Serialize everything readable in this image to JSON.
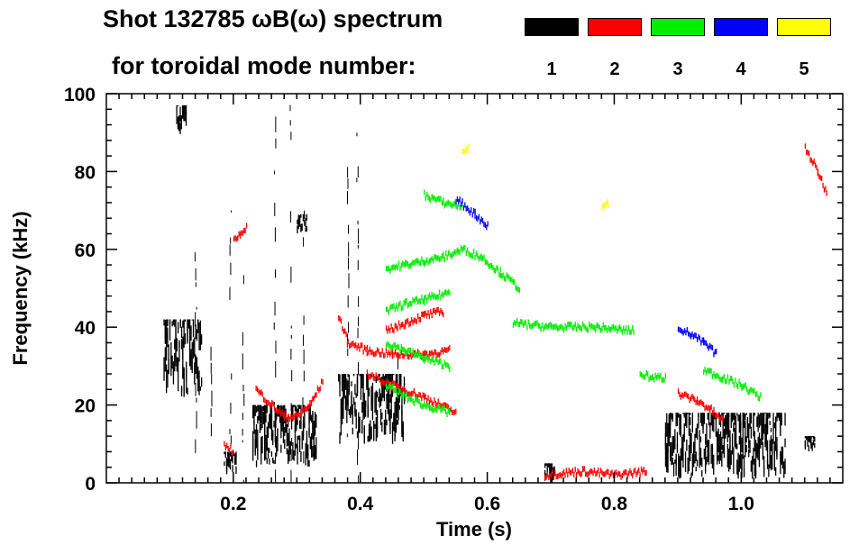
{
  "chart_data": {
    "type": "scatter",
    "title_line1": "Shot 132785 ωB(ω) spectrum",
    "title_line2": "for toroidal mode number:",
    "xlabel": "Time (s)",
    "ylabel": "Frequency (kHz)",
    "xlim": [
      0.0,
      1.16
    ],
    "ylim": [
      0,
      100
    ],
    "xticks": [
      0.2,
      0.4,
      0.6,
      0.8,
      1.0
    ],
    "xtick_labels": [
      "0.2",
      "0.4",
      "0.6",
      "0.8",
      "1.0"
    ],
    "yticks": [
      0,
      20,
      40,
      60,
      80,
      100
    ],
    "ytick_labels": [
      "0",
      "20",
      "40",
      "60",
      "80",
      "100"
    ],
    "legend": [
      {
        "label": "1",
        "color": "#000000"
      },
      {
        "label": "2",
        "color": "#ff0000"
      },
      {
        "label": "3",
        "color": "#00ee00"
      },
      {
        "label": "4",
        "color": "#0000ff"
      },
      {
        "label": "5",
        "color": "#ffff00"
      }
    ],
    "legend_placement": "top-right",
    "series": [
      {
        "label": "1",
        "color": "#000000",
        "blobs": [
          {
            "x": [
              0.09,
              0.15
            ],
            "y": [
              22,
              42
            ]
          },
          {
            "x": [
              0.11,
              0.125
            ],
            "y": [
              89,
              97
            ]
          },
          {
            "x": [
              0.23,
              0.33
            ],
            "y": [
              4,
              20
            ]
          },
          {
            "x": [
              0.365,
              0.47
            ],
            "y": [
              10,
              28
            ]
          },
          {
            "x": [
              0.185,
              0.205
            ],
            "y": [
              2,
              8
            ]
          },
          {
            "x": [
              0.69,
              0.705
            ],
            "y": [
              0,
              5
            ]
          },
          {
            "x": [
              0.88,
              1.07
            ],
            "y": [
              1,
              18
            ]
          },
          {
            "x": [
              0.3,
              0.315
            ],
            "y": [
              64,
              69
            ]
          },
          {
            "x": [
              1.1,
              1.115
            ],
            "y": [
              8,
              12
            ]
          }
        ],
        "streaks": [
          {
            "x": 0.14,
            "y": [
              0,
              60
            ]
          },
          {
            "x": 0.165,
            "y": [
              0,
              35
            ]
          },
          {
            "x": 0.195,
            "y": [
              10,
              70
            ]
          },
          {
            "x": 0.215,
            "y": [
              0,
              55
            ]
          },
          {
            "x": 0.265,
            "y": [
              0,
              100
            ]
          },
          {
            "x": 0.29,
            "y": [
              0,
              100
            ]
          },
          {
            "x": 0.31,
            "y": [
              5,
              70
            ]
          },
          {
            "x": 0.38,
            "y": [
              0,
              90
            ]
          },
          {
            "x": 0.395,
            "y": [
              0,
              90
            ]
          },
          {
            "x": 0.46,
            "y": [
              15,
              40
            ]
          }
        ]
      },
      {
        "label": "2",
        "color": "#ff0000",
        "traces": [
          {
            "x": [
              0.235,
              0.26,
              0.28,
              0.3,
              0.32,
              0.34
            ],
            "y": [
              24,
              20,
              17,
              17,
              20,
              26
            ]
          },
          {
            "x": [
              0.365,
              0.38,
              0.41,
              0.45,
              0.5,
              0.54
            ],
            "y": [
              43,
              36,
              34,
              33,
              33,
              34
            ]
          },
          {
            "x": [
              0.44,
              0.47,
              0.5,
              0.53
            ],
            "y": [
              39,
              41,
              43,
              44
            ]
          },
          {
            "x": [
              0.41,
              0.45,
              0.5,
              0.55
            ],
            "y": [
              28,
              25,
              22,
              18
            ]
          },
          {
            "x": [
              0.2,
              0.21,
              0.22
            ],
            "y": [
              62,
              64,
              66
            ]
          },
          {
            "x": [
              0.9,
              0.93,
              0.95,
              0.97
            ],
            "y": [
              23,
              21,
              19,
              16
            ]
          },
          {
            "x": [
              1.1,
              1.12,
              1.135
            ],
            "y": [
              86,
              80,
              74
            ]
          },
          {
            "x": [
              0.69,
              0.75,
              0.8,
              0.85
            ],
            "y": [
              2,
              3,
              2,
              3
            ]
          },
          {
            "x": [
              0.185,
              0.2
            ],
            "y": [
              10,
              8
            ]
          }
        ]
      },
      {
        "label": "3",
        "color": "#00ee00",
        "traces": [
          {
            "x": [
              0.44,
              0.47,
              0.5,
              0.53,
              0.56,
              0.59,
              0.62,
              0.65
            ],
            "y": [
              55,
              56,
              57,
              58,
              60,
              58,
              54,
              50
            ]
          },
          {
            "x": [
              0.44,
              0.47,
              0.5,
              0.54
            ],
            "y": [
              44,
              46,
              47,
              49
            ]
          },
          {
            "x": [
              0.44,
              0.47,
              0.5,
              0.54
            ],
            "y": [
              36,
              34,
              32,
              30
            ]
          },
          {
            "x": [
              0.44,
              0.47,
              0.5,
              0.54
            ],
            "y": [
              25,
              22,
              20,
              18
            ]
          },
          {
            "x": [
              0.64,
              0.7,
              0.77,
              0.83
            ],
            "y": [
              41,
              40,
              40,
              39
            ]
          },
          {
            "x": [
              0.94,
              0.97,
              1.0,
              1.03
            ],
            "y": [
              29,
              27,
              25,
              22
            ]
          },
          {
            "x": [
              0.5,
              0.53,
              0.56
            ],
            "y": [
              74,
              72,
              71
            ]
          },
          {
            "x": [
              0.84,
              0.86,
              0.88
            ],
            "y": [
              28,
              27,
              27
            ]
          }
        ]
      },
      {
        "label": "4",
        "color": "#0000ff",
        "traces": [
          {
            "x": [
              0.9,
              0.92,
              0.94,
              0.96
            ],
            "y": [
              40,
              38,
              36,
              33
            ]
          },
          {
            "x": [
              0.55,
              0.58,
              0.6
            ],
            "y": [
              73,
              69,
              66
            ]
          }
        ]
      },
      {
        "label": "5",
        "color": "#ffff00",
        "traces": [
          {
            "x": [
              0.56,
              0.57
            ],
            "y": [
              85,
              86
            ]
          },
          {
            "x": [
              0.78,
              0.79
            ],
            "y": [
              71,
              72
            ]
          }
        ]
      }
    ]
  }
}
